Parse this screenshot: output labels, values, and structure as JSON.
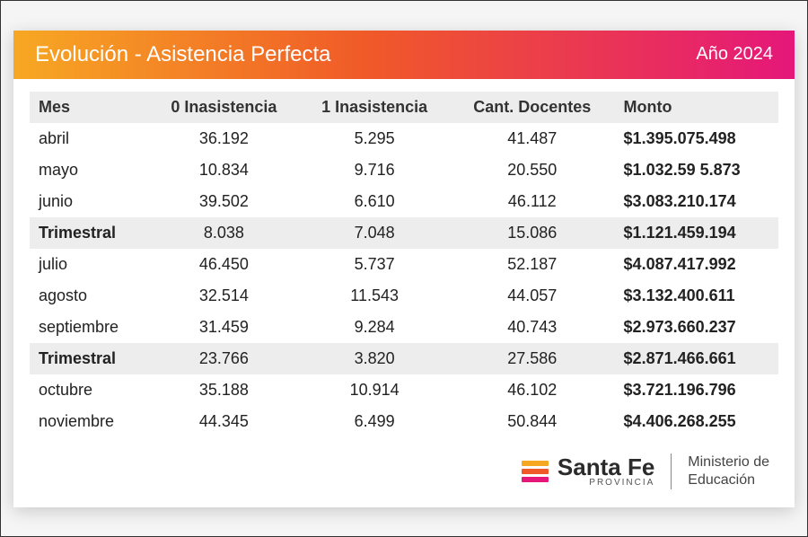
{
  "header": {
    "title": "Evolución - Asistencia Perfecta",
    "year": "Año 2024",
    "gradient_start": "#f7a823",
    "gradient_mid": "#f05a28",
    "gradient_end": "#e5177a"
  },
  "table": {
    "columns": [
      "Mes",
      "0 Inasistencia",
      "1 Inasistencia",
      "Cant. Docentes",
      "Monto"
    ],
    "rows": [
      {
        "cells": [
          "abril",
          "36.192",
          "5.295",
          "41.487",
          "$1.395.075.498"
        ],
        "trimestral": false
      },
      {
        "cells": [
          "mayo",
          "10.834",
          "9.716",
          "20.550",
          "$1.032.59 5.873"
        ],
        "trimestral": false
      },
      {
        "cells": [
          "junio",
          "39.502",
          "6.610",
          "46.112",
          "$3.083.210.174"
        ],
        "trimestral": false
      },
      {
        "cells": [
          "Trimestral",
          "8.038",
          "7.048",
          "15.086",
          "$1.121.459.194"
        ],
        "trimestral": true
      },
      {
        "cells": [
          "julio",
          "46.450",
          "5.737",
          "52.187",
          "$4.087.417.992"
        ],
        "trimestral": false
      },
      {
        "cells": [
          "agosto",
          "32.514",
          "11.543",
          "44.057",
          "$3.132.400.611"
        ],
        "trimestral": false
      },
      {
        "cells": [
          "septiembre",
          "31.459",
          "9.284",
          "40.743",
          "$2.973.660.237"
        ],
        "trimestral": false
      },
      {
        "cells": [
          "Trimestral",
          "23.766",
          "3.820",
          "27.586",
          "$2.871.466.661"
        ],
        "trimestral": true
      },
      {
        "cells": [
          "octubre",
          "35.188",
          "10.914",
          "46.102",
          "$3.721.196.796"
        ],
        "trimestral": false
      },
      {
        "cells": [
          "noviembre",
          "44.345",
          "6.499",
          "50.844",
          "$4.406.268.255"
        ],
        "trimestral": false
      }
    ],
    "header_bg": "#ededed",
    "trimestral_bg": "#ededed"
  },
  "footer": {
    "logo_bars": [
      "#f7a823",
      "#f05a28",
      "#e5177a"
    ],
    "logo_main": "Santa Fe",
    "logo_sub": "PROVINCIA",
    "ministry_line1": "Ministerio de",
    "ministry_line2": "Educación"
  }
}
